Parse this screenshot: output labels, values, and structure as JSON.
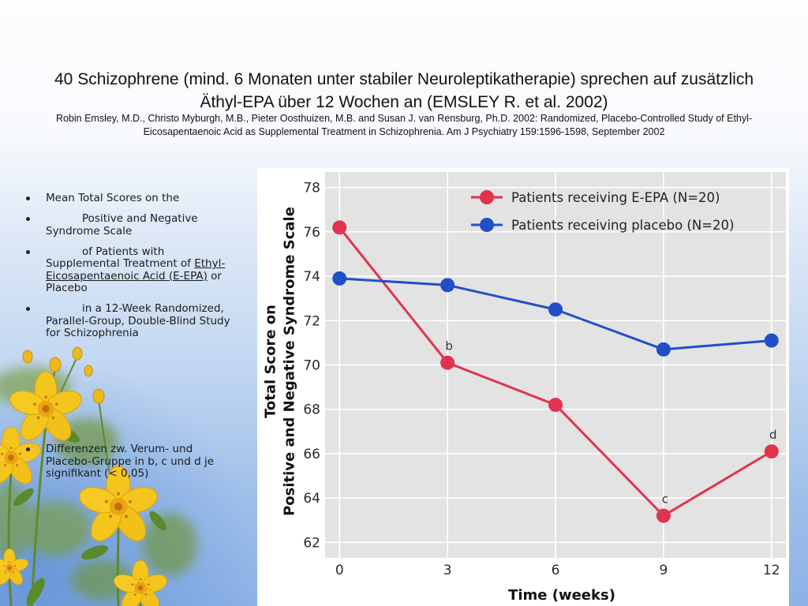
{
  "slide": {
    "title": "40 Schizophrene (mind. 6 Monaten unter stabiler Neuroleptikatherapie) sprechen auf zusätzlich Äthyl-EPA über 12 Wochen an (EMSLEY R. et al. 2002)",
    "reference": "Robin Emsley, M.D., Christo Myburgh, M.B., Pieter Oosthuizen, M.B. and Susan J. van Rensburg, Ph.D. 2002: Randomized, Placebo-Controlled Study of Ethyl-Eicosapentaenoic Acid as Supplemental Treatment in Schizophrenia.  Am J Psychiatry 159:1596-1598, September 2002"
  },
  "bullets": {
    "item1": "Mean Total Scores on the",
    "item2": "Positive and Negative Syndrome Scale",
    "item3_before": "of Patients with Supplemental Treatment of ",
    "item3_underlined": "Ethyl-Eicosapentaenoic Acid (E-EPA)",
    "item3_after": " or Placebo",
    "item4": "in a 12-Week Randomized, Parallel-Group, Double-Blind Study for Schizophrenia",
    "note": "Differenzen zw. Verum- und Placebo-Gruppe in b, c und d je signifikant (< 0,05)"
  },
  "colors": {
    "plot_background": "#e3e3e3",
    "gridline": "#ffffff"
  },
  "chart_data": {
    "type": "line",
    "x": [
      0,
      3,
      6,
      9,
      12
    ],
    "series": [
      {
        "name": "Patients receiving E-EPA (N=20)",
        "values": [
          76.2,
          70.1,
          68.2,
          63.2,
          66.1
        ],
        "color": "#e2334e"
      },
      {
        "name": "Patients receiving placebo (N=20)",
        "values": [
          73.9,
          73.6,
          72.5,
          70.7,
          71.1
        ],
        "color": "#2150c6"
      }
    ],
    "xlabel": "Time (weeks)",
    "ylabel": [
      "Total Score on",
      "Positive and Negative Syndrome Scale"
    ],
    "xticks": [
      0,
      3,
      6,
      9,
      12
    ],
    "yticks": [
      62,
      64,
      66,
      68,
      70,
      72,
      74,
      76,
      78
    ],
    "xlim": [
      -0.4,
      12.4
    ],
    "ylim": [
      61.3,
      78.7
    ],
    "grid": true,
    "legend": "top-right",
    "annotations": [
      {
        "label": "b",
        "series": 0,
        "x": 3
      },
      {
        "label": "c",
        "series": 0,
        "x": 9
      },
      {
        "label": "d",
        "series": 0,
        "x": 12
      }
    ]
  }
}
